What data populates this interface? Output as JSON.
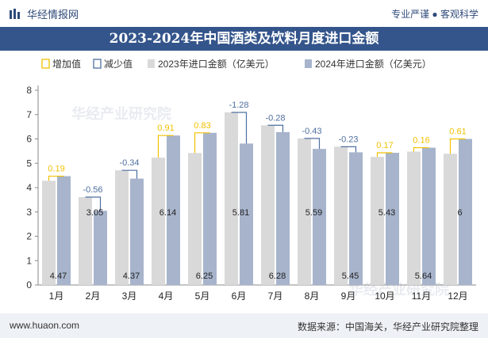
{
  "header": {
    "brand": "华经情报网",
    "slogan": "专业严谨 ● 客观科学"
  },
  "title": "2023-2024年中国酒类及饮料月度进口金额",
  "legend": {
    "increase": "增加值",
    "decrease": "减少值",
    "s2023": "2023年进口金额（亿美元）",
    "s2024": "2024年进口金额（亿美元）"
  },
  "watermark": "华经产业研究院",
  "footer": {
    "site": "www.huaon.com",
    "source": "数据来源：中国海关，华经产业研究院整理"
  },
  "colors": {
    "bar2023": "#d9d9d9",
    "bar2024": "#a7b4cc",
    "increase": "#f2c100",
    "decrease": "#4f6fa0",
    "titlebar": "#34558b"
  },
  "chart_data": {
    "type": "bar",
    "title": "2023-2024年中国酒类及饮料月度进口金额",
    "categories": [
      "1月",
      "2月",
      "3月",
      "4月",
      "5月",
      "6月",
      "7月",
      "8月",
      "9月",
      "10月",
      "11月",
      "12月"
    ],
    "series": [
      {
        "name": "2023年进口金额（亿美元）",
        "values": [
          4.28,
          3.61,
          4.71,
          5.23,
          5.42,
          7.09,
          6.56,
          6.02,
          5.68,
          5.26,
          5.48,
          5.39
        ]
      },
      {
        "name": "2024年进口金额（亿美元）",
        "values": [
          4.47,
          3.05,
          4.37,
          6.14,
          6.25,
          5.81,
          6.28,
          5.59,
          5.45,
          5.43,
          5.64,
          6
        ]
      }
    ],
    "change": [
      0.19,
      -0.56,
      -0.34,
      0.91,
      0.83,
      -1.28,
      -0.28,
      -0.43,
      -0.23,
      0.17,
      0.16,
      0.61
    ],
    "change_labels": [
      "0.19",
      "-0.56",
      "-0.34",
      "0.91",
      "0.83",
      "-1.28",
      "-0.28",
      "-0.43",
      "-0.23",
      "0.17",
      "0.16",
      "0.61"
    ],
    "value_labels_2024": [
      "4.47",
      "3.05",
      "4.37",
      "6.14",
      "6.25",
      "5.81",
      "6.28",
      "5.59",
      "5.45",
      "5.43",
      "5.64",
      "6"
    ],
    "ylim": [
      0,
      8
    ],
    "yticks": [
      "0",
      "1",
      "2",
      "3",
      "4",
      "5",
      "6",
      "7",
      "8"
    ],
    "grid": false,
    "legend_position": "top"
  }
}
